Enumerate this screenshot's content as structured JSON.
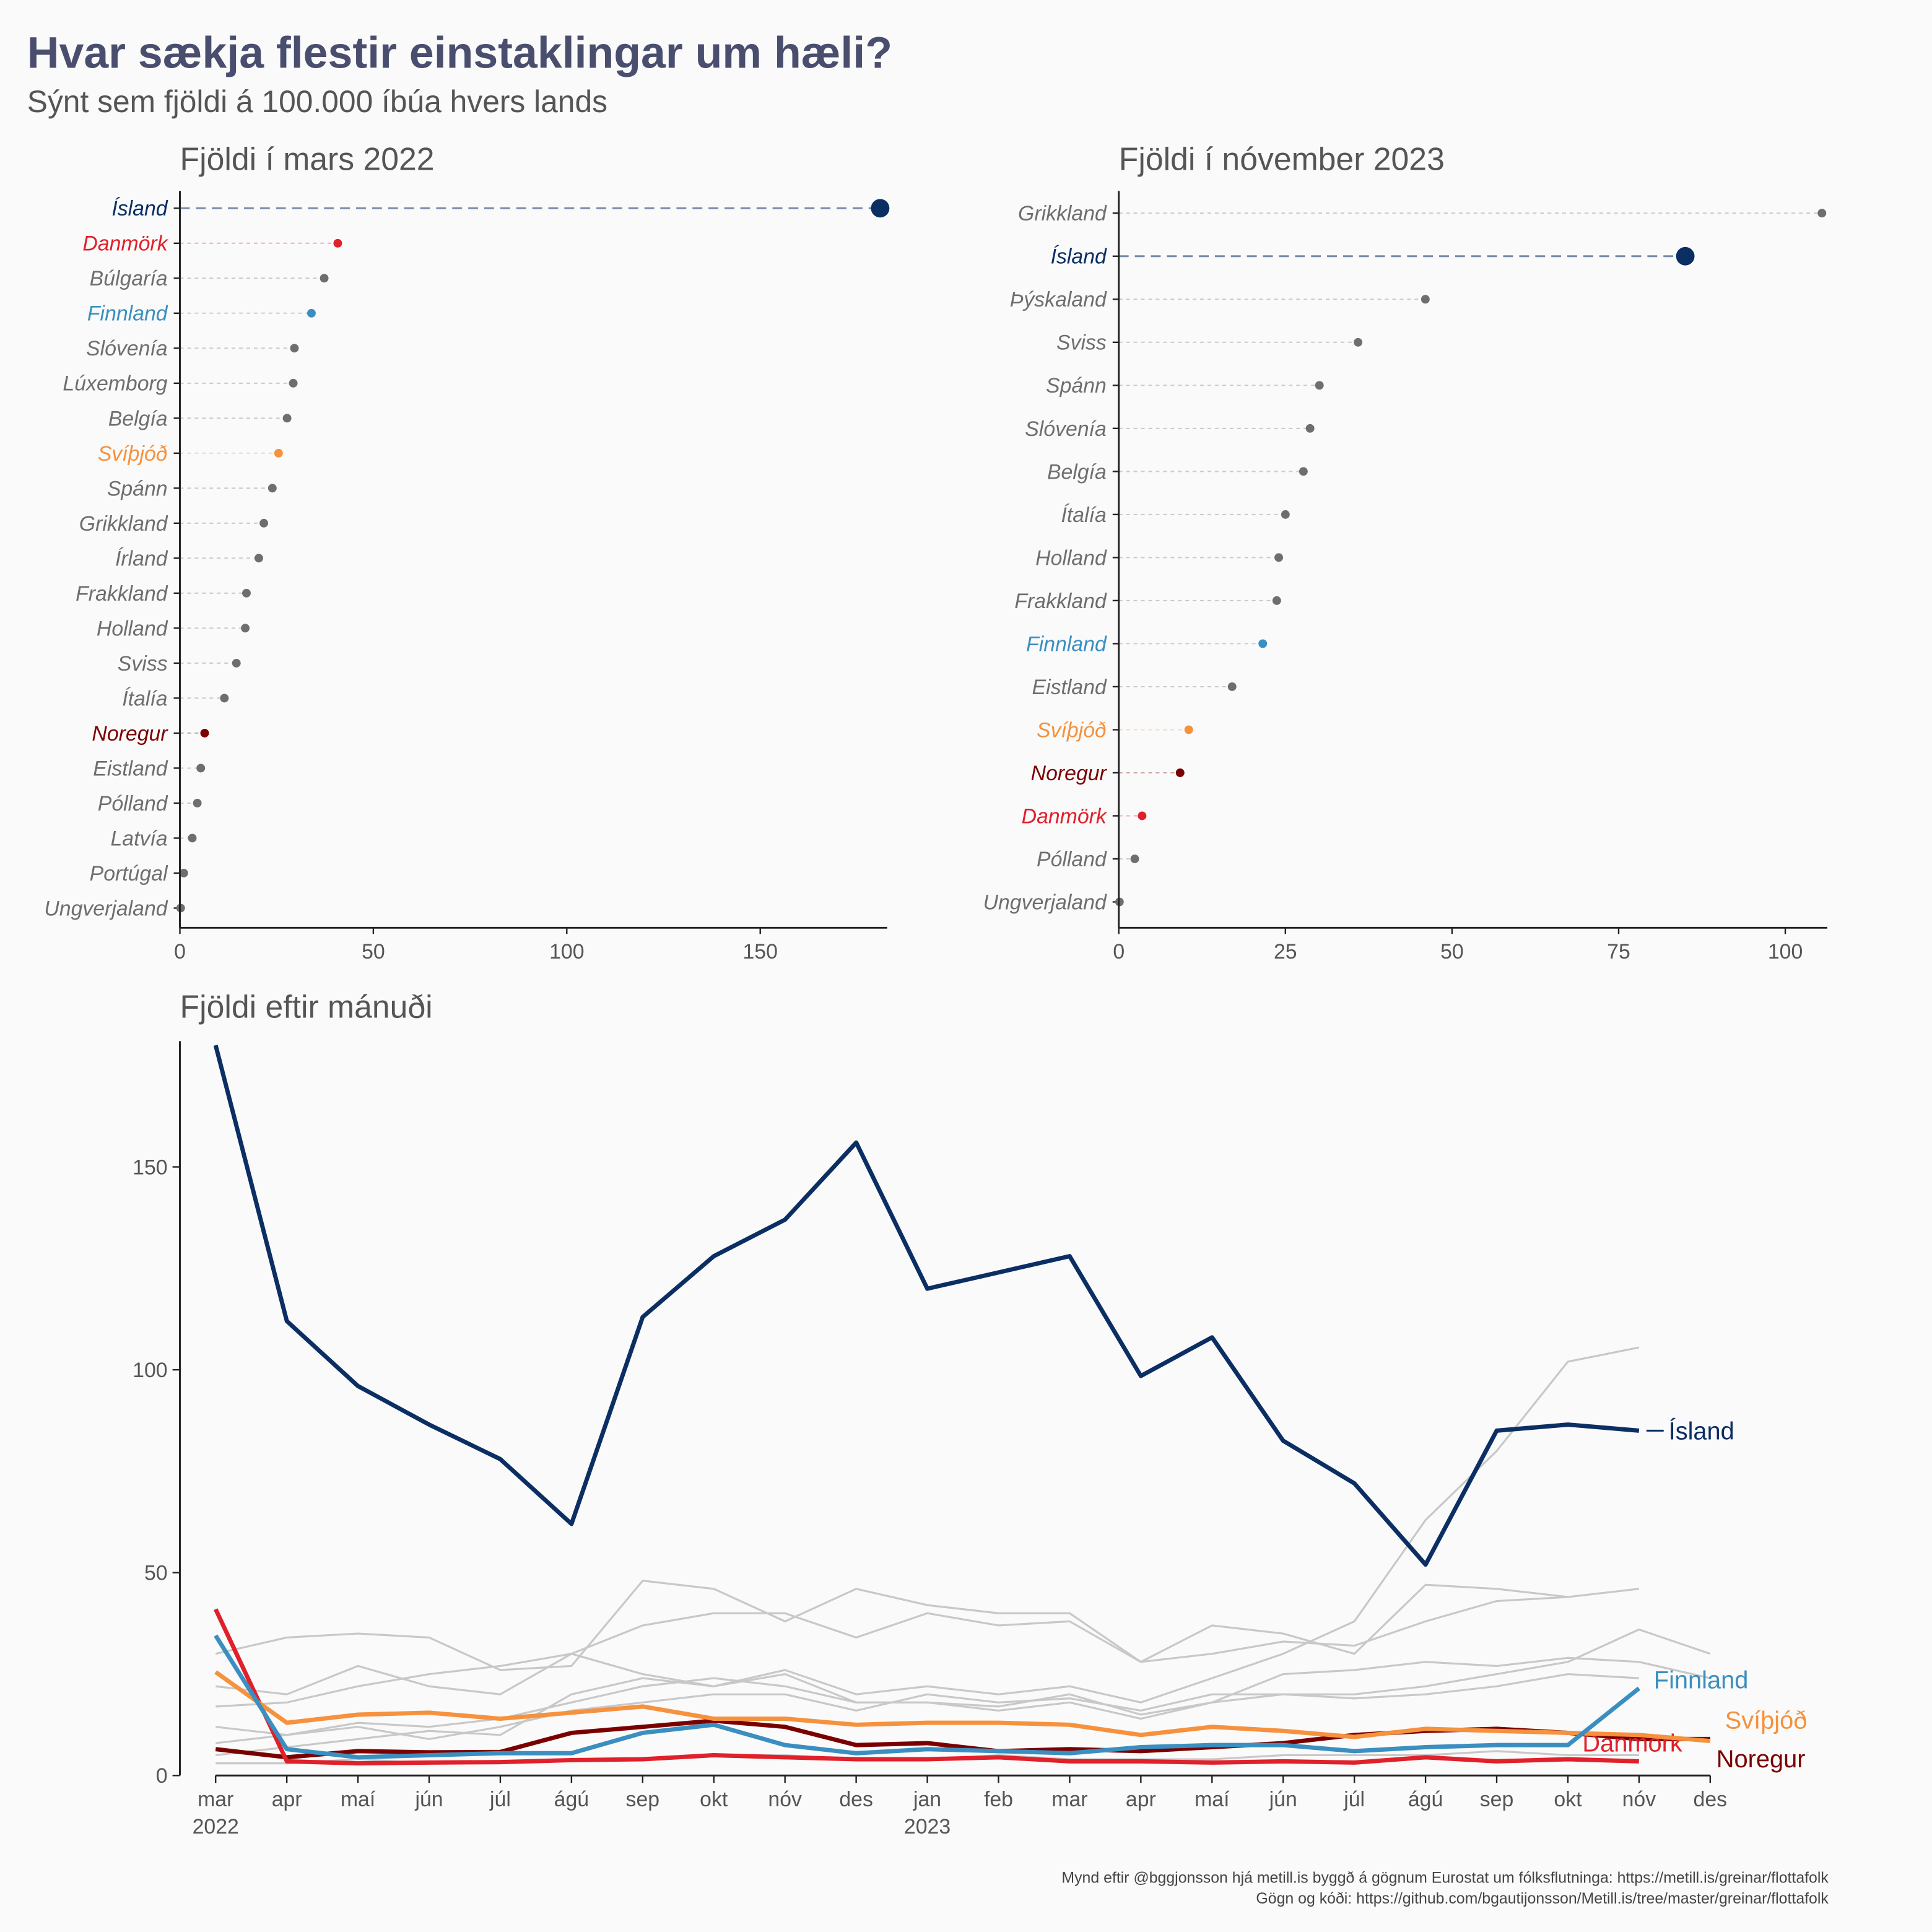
{
  "title": "Hvar sækja flestir einstaklingar um hæli?",
  "subtitle": "Sýnt sem fjöldi á 100.000 íbúa hvers lands",
  "footer": [
    "Mynd eftir @bggjonsson hjá metill.is byggð á gögnum Eurostat um fólksflutninga: https://metill.is/greinar/flottafolk",
    "Gögn og kóði: https://github.com/bgautijonsson/Metill.is/tree/master/greinar/flottafolk"
  ],
  "chart_data": [
    {
      "type": "lollipop",
      "title": "Fjöldi í mars 2022",
      "highlight": "Ísland",
      "categories": [
        "Ísland",
        "Danmörk",
        "Búlgaría",
        "Finnland",
        "Slóvenía",
        "Lúxemborg",
        "Belgía",
        "Svíþjóð",
        "Spánn",
        "Grikkland",
        "Írland",
        "Frakkland",
        "Holland",
        "Sviss",
        "Ítalía",
        "Noregur",
        "Eistland",
        "Pólland",
        "Latvía",
        "Portúgal",
        "Ungverjaland"
      ],
      "values": [
        181,
        40.8,
        37.3,
        34,
        29.6,
        29.3,
        27.7,
        25.5,
        23.9,
        21.7,
        20.4,
        17.2,
        16.9,
        14.6,
        11.5,
        6.4,
        5.4,
        4.5,
        3.2,
        1,
        0.2
      ],
      "colors": [
        "#0b2e63",
        "#e0202a",
        "#6e6e6e",
        "#3a8fc0",
        "#6e6e6e",
        "#6e6e6e",
        "#6e6e6e",
        "#f6913d",
        "#6e6e6e",
        "#6e6e6e",
        "#6e6e6e",
        "#6e6e6e",
        "#6e6e6e",
        "#6e6e6e",
        "#6e6e6e",
        "#7a0000",
        "#6e6e6e",
        "#6e6e6e",
        "#6e6e6e",
        "#6e6e6e",
        "#6e6e6e"
      ],
      "xlim": [
        0,
        182.8
      ],
      "xticks": [
        0,
        50,
        100,
        150
      ]
    },
    {
      "type": "lollipop",
      "title": "Fjöldi í nóvember 2023",
      "highlight": "Ísland",
      "categories": [
        "Grikkland",
        "Ísland",
        "Þýskaland",
        "Sviss",
        "Spánn",
        "Slóvenía",
        "Belgía",
        "Ítalía",
        "Holland",
        "Frakkland",
        "Finnland",
        "Eistland",
        "Svíþjóð",
        "Noregur",
        "Danmörk",
        "Pólland",
        "Ungverjaland"
      ],
      "values": [
        105.5,
        85,
        46,
        35.9,
        30.1,
        28.7,
        27.7,
        25,
        24,
        23.7,
        21.6,
        17,
        10.5,
        9.2,
        3.5,
        2.4,
        0.1
      ],
      "colors": [
        "#6e6e6e",
        "#0b2e63",
        "#6e6e6e",
        "#6e6e6e",
        "#6e6e6e",
        "#6e6e6e",
        "#6e6e6e",
        "#6e6e6e",
        "#6e6e6e",
        "#6e6e6e",
        "#3a8fc0",
        "#6e6e6e",
        "#f6913d",
        "#7a0000",
        "#e0202a",
        "#6e6e6e",
        "#6e6e6e"
      ],
      "xlim": [
        0,
        106.3
      ],
      "xticks": [
        0,
        25,
        50,
        75,
        100
      ]
    },
    {
      "type": "line",
      "title": "Fjöldi eftir mánuði",
      "categories": [
        "mar",
        "apr",
        "maí",
        "jún",
        "júl",
        "ágú",
        "sep",
        "okt",
        "nóv",
        "des",
        "jan",
        "feb",
        "mar",
        "apr",
        "maí",
        "jún",
        "júl",
        "ágú",
        "sep",
        "okt",
        "nóv",
        "des"
      ],
      "years": [
        "2022",
        null,
        null,
        null,
        null,
        null,
        null,
        null,
        null,
        null,
        "2023",
        null,
        null,
        null,
        null,
        null,
        null,
        null,
        null,
        null,
        null,
        null
      ],
      "ylim": [
        0,
        181
      ],
      "yticks": [
        0,
        50,
        100,
        150
      ],
      "series": [
        {
          "color": "#c8c8c8",
          "values": [
            22,
            20,
            27,
            22,
            20,
            30,
            25,
            22,
            26,
            20,
            22,
            20,
            22,
            18,
            24,
            30,
            38,
            63,
            80,
            102,
            105.5,
            null
          ]
        },
        {
          "color": "#c8c8c8",
          "values": [
            17,
            18,
            22,
            25,
            27,
            30,
            37,
            40,
            40,
            34,
            40,
            37,
            38,
            28,
            30,
            33,
            32,
            38,
            43,
            44,
            46,
            null
          ]
        },
        {
          "color": "#c8c8c8",
          "values": [
            30,
            34,
            35,
            34,
            26,
            27,
            48,
            46,
            38,
            46,
            42,
            40,
            40,
            28,
            37,
            35,
            30,
            47,
            46,
            44,
            null,
            null
          ]
        },
        {
          "color": "#c8c8c8",
          "values": [
            12,
            10,
            13,
            12,
            14,
            18,
            22,
            24,
            22,
            18,
            18,
            16,
            18,
            14,
            18,
            20,
            20,
            22,
            25,
            28,
            36,
            30
          ]
        },
        {
          "color": "#c8c8c8",
          "values": [
            5,
            7,
            9,
            11,
            10,
            20,
            24,
            22,
            25,
            18,
            18,
            17,
            20,
            15,
            18,
            25,
            26,
            28,
            27,
            29,
            28,
            24
          ]
        },
        {
          "color": "#c8c8c8",
          "values": [
            8,
            10,
            12,
            9,
            12,
            16,
            18,
            20,
            20,
            16,
            20,
            18,
            19,
            16,
            20,
            20,
            19,
            20,
            22,
            25,
            24,
            null
          ]
        },
        {
          "color": "#c8c8c8",
          "values": [
            3,
            3,
            4,
            3,
            3,
            4,
            4,
            5,
            5,
            4,
            4,
            5,
            4,
            4,
            4,
            5,
            5,
            5,
            6,
            5,
            5,
            null
          ]
        },
        {
          "name": "Noregur",
          "color": "#7a0000",
          "values": [
            6.5,
            4.5,
            6,
            5.7,
            5.8,
            10.5,
            12,
            13.5,
            12,
            7.5,
            8,
            6,
            6.5,
            6,
            7,
            8,
            10,
            11,
            11.5,
            10.5,
            9,
            9
          ]
        },
        {
          "name": "Danmörk",
          "color": "#e0202a",
          "values": [
            41,
            3.5,
            3,
            3.2,
            3.3,
            3.8,
            4,
            5,
            4.5,
            4,
            4,
            4.5,
            3.5,
            3.5,
            3.2,
            3.5,
            3.2,
            4.5,
            3.5,
            4,
            3.5,
            null
          ]
        },
        {
          "name": "Svíþjóð",
          "color": "#f6913d",
          "values": [
            25.5,
            13,
            15,
            15.5,
            14,
            15.5,
            17,
            14,
            14,
            12.5,
            13,
            13,
            12.5,
            10,
            12,
            11,
            9.5,
            11.5,
            11,
            10.5,
            10,
            8.5
          ]
        },
        {
          "name": "Finnland",
          "color": "#3a8fc0",
          "values": [
            34.5,
            6.5,
            4.5,
            5,
            5.5,
            5.5,
            10.5,
            12.5,
            7.5,
            5.5,
            6.5,
            6,
            5.5,
            7,
            7.5,
            7.5,
            6,
            7,
            7.5,
            7.5,
            21.5,
            null
          ]
        },
        {
          "name": "Ísland",
          "color": "#0b2e63",
          "values": [
            180,
            112,
            96,
            86.5,
            78,
            62,
            113,
            128,
            137,
            156,
            120,
            124,
            128,
            98.5,
            108,
            82.5,
            72,
            52,
            85,
            86.5,
            85,
            null
          ]
        }
      ]
    }
  ]
}
